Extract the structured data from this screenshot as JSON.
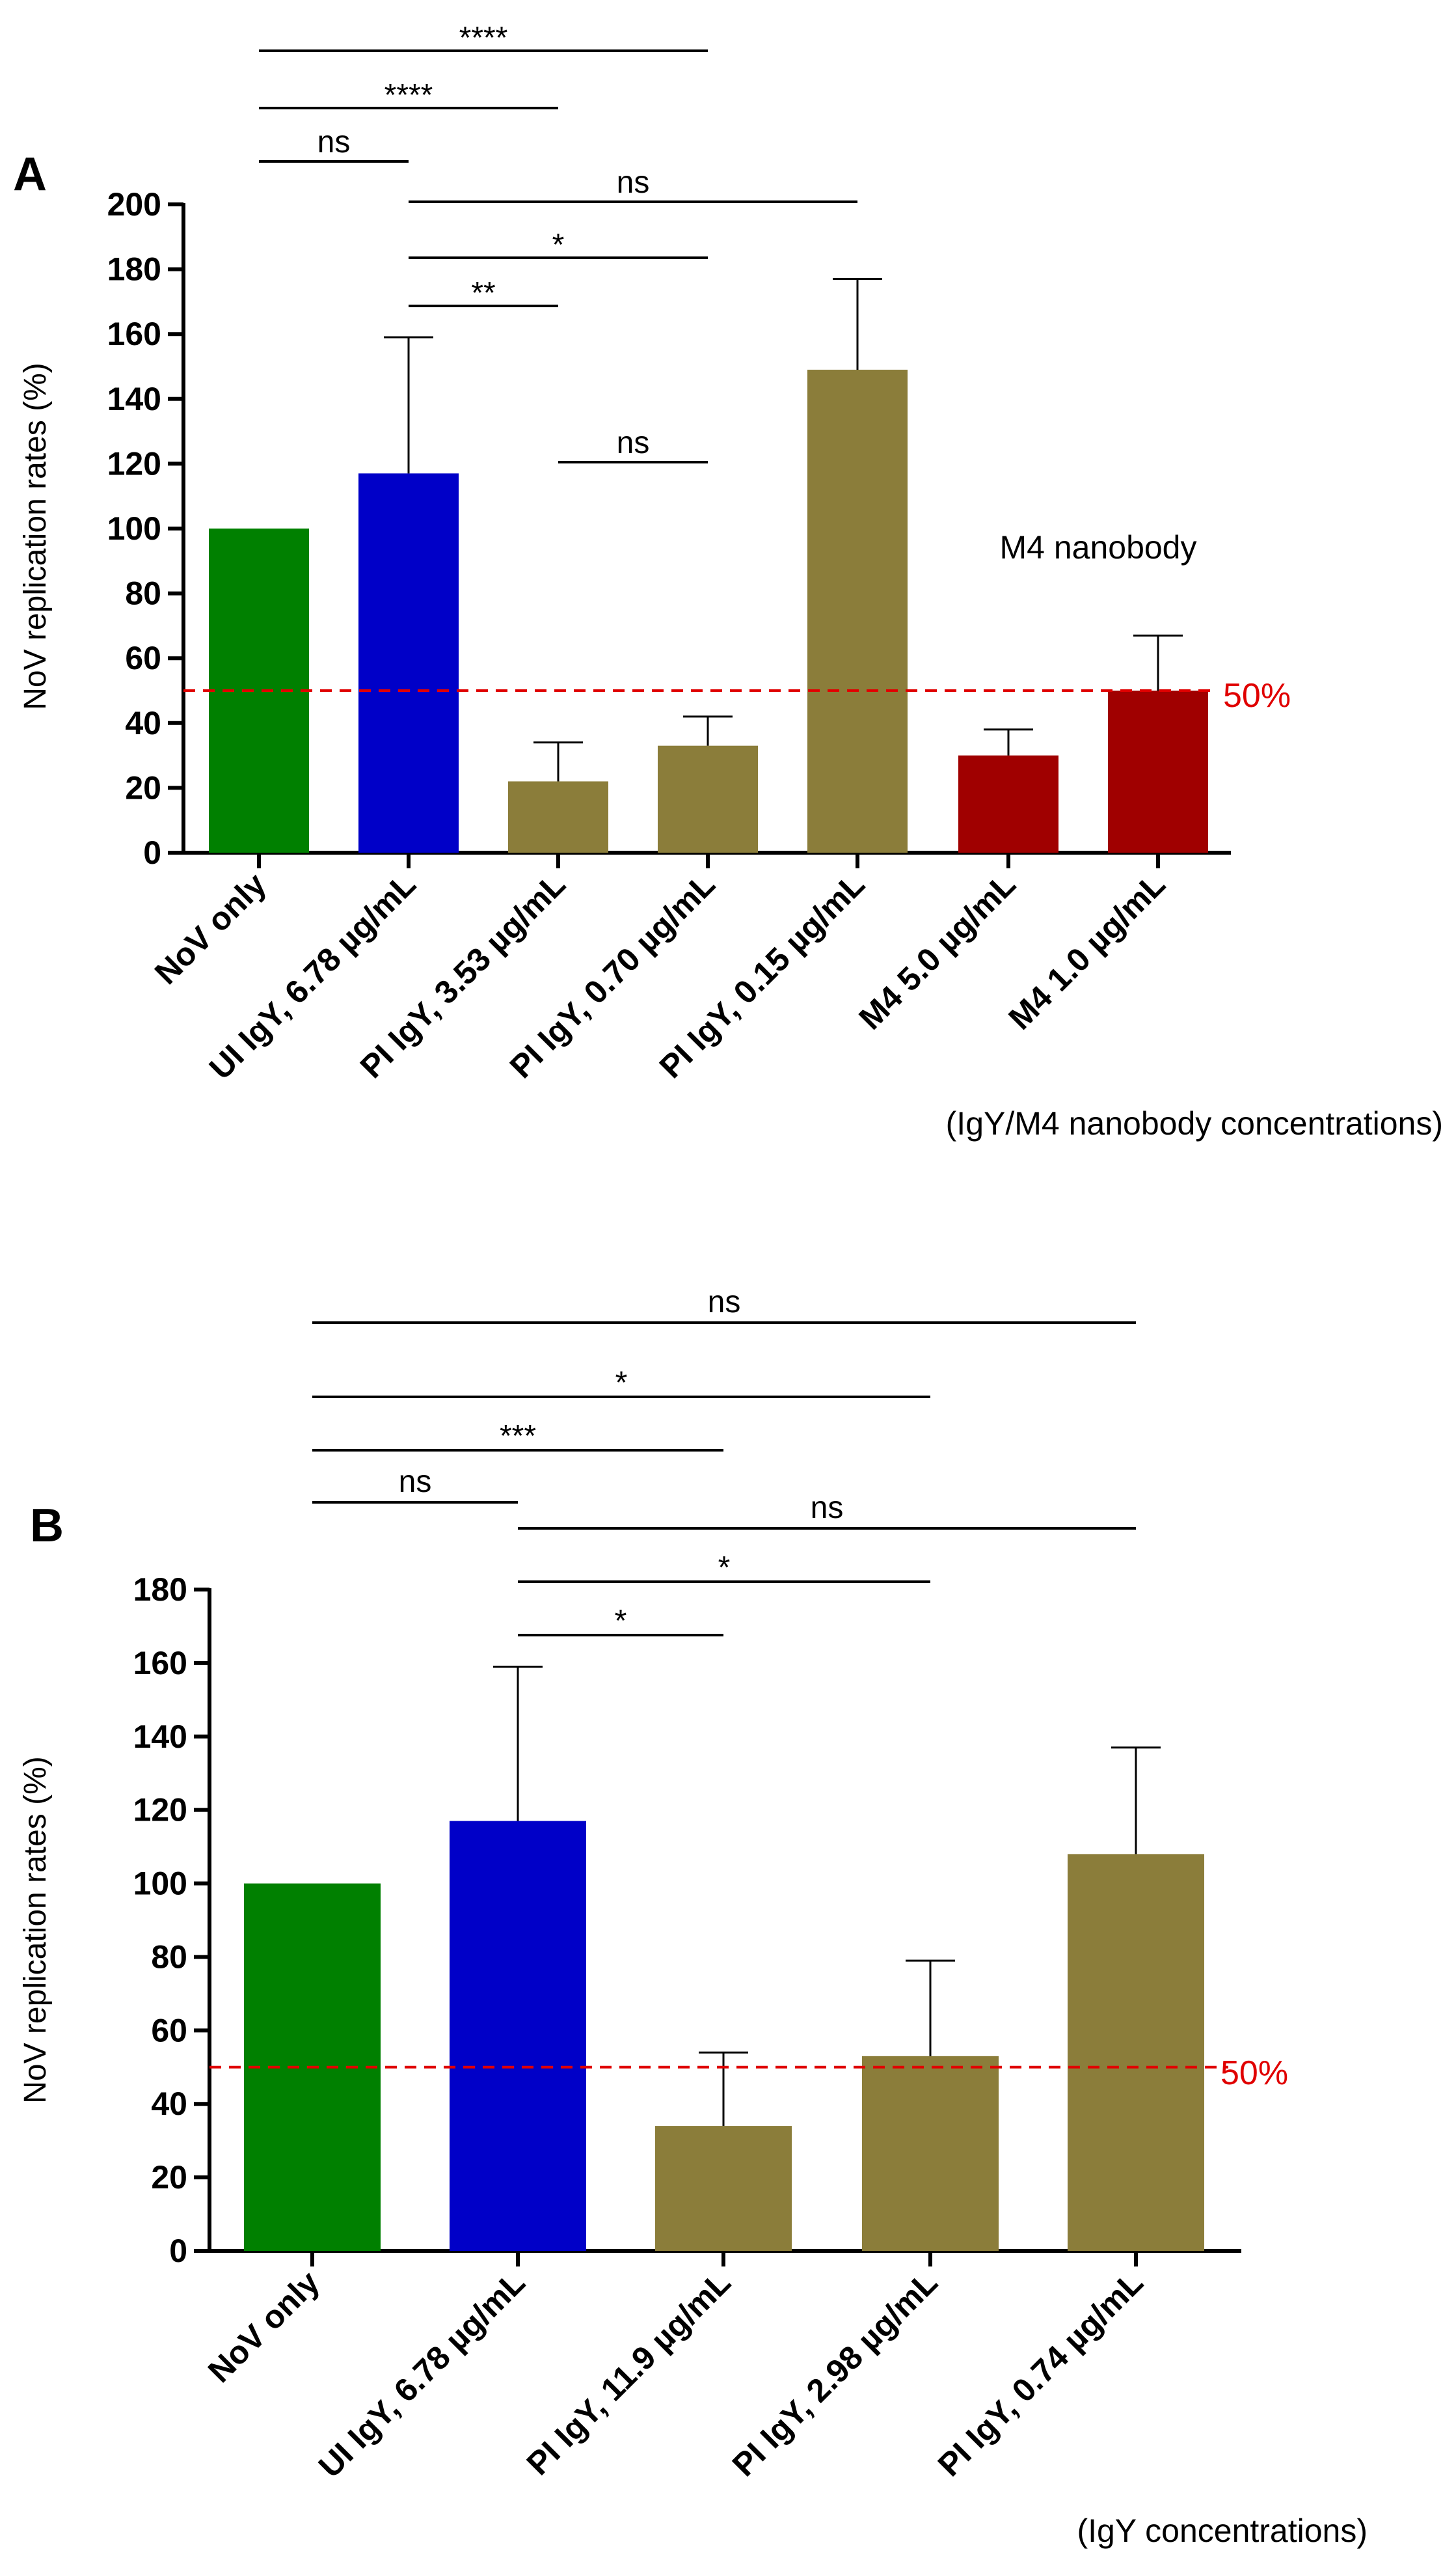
{
  "chart_data": [
    {
      "type": "bar",
      "panel": "A",
      "ylabel": "NoV replication rates (%)",
      "xlabel": "(IgY/M4 nanobody concentrations)",
      "ylim": [
        0,
        200
      ],
      "yticks": [
        0,
        20,
        40,
        60,
        80,
        100,
        120,
        140,
        160,
        180,
        200
      ],
      "categories": [
        "NoV only",
        "UI IgY, 6.78 µg/mL",
        "PI IgY, 3.53 µg/mL",
        "PI IgY, 0.70 µg/mL",
        "PI IgY, 0.15 µg/mL",
        "M4 5.0 µg/mL",
        "M4 1.0 µg/mL"
      ],
      "values": [
        100,
        117,
        22,
        33,
        149,
        30,
        50
      ],
      "errors": [
        0,
        42,
        12,
        9,
        28,
        8,
        17
      ],
      "colors": [
        "#008000",
        "#0000c8",
        "#8b7d3a",
        "#8b7d3a",
        "#8b7d3a",
        "#a00000",
        "#a00000"
      ],
      "reference_line": {
        "value": 50,
        "label": "50%",
        "color": "#e00000"
      },
      "annotation": "M4 nanobody",
      "significance": [
        {
          "from": 0,
          "to": 1,
          "label": "ns"
        },
        {
          "from": 0,
          "to": 2,
          "label": "****"
        },
        {
          "from": 0,
          "to": 3,
          "label": "****"
        },
        {
          "from": 1,
          "to": 4,
          "label": "ns"
        },
        {
          "from": 1,
          "to": 3,
          "label": "*"
        },
        {
          "from": 1,
          "to": 2,
          "label": "**"
        },
        {
          "from": 2,
          "to": 3,
          "label": "ns"
        }
      ]
    },
    {
      "type": "bar",
      "panel": "B",
      "ylabel": "NoV replication rates (%)",
      "xlabel": "(IgY concentrations)",
      "ylim": [
        0,
        180
      ],
      "yticks": [
        0,
        20,
        40,
        60,
        80,
        100,
        120,
        140,
        160,
        180
      ],
      "categories": [
        "NoV only",
        "UI IgY, 6.78 µg/mL",
        "PI IgY, 11.9 µg/mL",
        "PI IgY, 2.98 µg/mL",
        "PI IgY, 0.74 µg/mL"
      ],
      "values": [
        100,
        117,
        34,
        53,
        108
      ],
      "errors": [
        0,
        42,
        20,
        26,
        29
      ],
      "colors": [
        "#008000",
        "#0000c8",
        "#8b7d3a",
        "#8b7d3a",
        "#8b7d3a"
      ],
      "reference_line": {
        "value": 50,
        "label": "50%",
        "color": "#e00000"
      },
      "significance": [
        {
          "from": 0,
          "to": 4,
          "label": "ns"
        },
        {
          "from": 0,
          "to": 3,
          "label": "*"
        },
        {
          "from": 0,
          "to": 2,
          "label": "***"
        },
        {
          "from": 0,
          "to": 1,
          "label": "ns"
        },
        {
          "from": 1,
          "to": 4,
          "label": "ns"
        },
        {
          "from": 1,
          "to": 3,
          "label": "*"
        },
        {
          "from": 1,
          "to": 2,
          "label": "*"
        }
      ]
    }
  ]
}
